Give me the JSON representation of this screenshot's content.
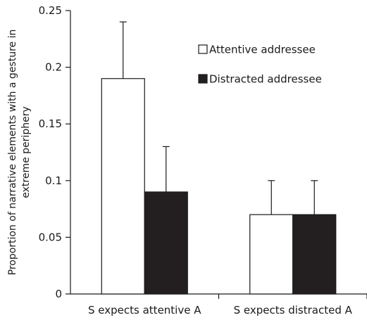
{
  "chart_data": {
    "type": "bar",
    "categories": [
      "S expects attentive A",
      "S expects distracted A"
    ],
    "series": [
      {
        "name": "Attentive addressee",
        "values": [
          0.19,
          0.07
        ],
        "error_plus": [
          0.05,
          0.03
        ],
        "color": "#ffffff"
      },
      {
        "name": "Distracted addressee",
        "values": [
          0.09,
          0.07
        ],
        "error_plus": [
          0.04,
          0.03
        ],
        "color": "#231f20"
      }
    ],
    "ylabel_lines": [
      "Proportion of narrative elements with a gesture in",
      "extreme periphery"
    ],
    "ylim": [
      0,
      0.25
    ],
    "yticks": [
      0,
      0.05,
      0.1,
      0.15,
      0.2,
      0.25
    ],
    "ytick_labels": [
      "0",
      "0.05",
      "0.1",
      "0.15",
      "0.2",
      "0.25"
    ],
    "legend_position": "top-right",
    "grid": false
  }
}
